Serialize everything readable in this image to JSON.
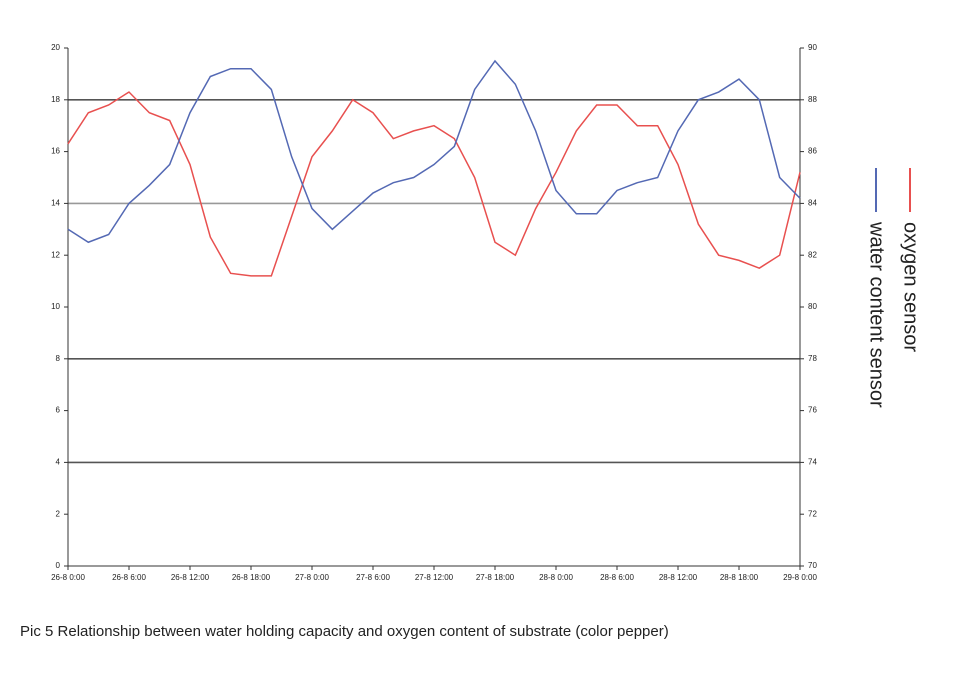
{
  "chart_data": {
    "type": "line",
    "caption": "Pic 5 Relationship between water holding capacity and oxygen content of substrate (color pepper)",
    "x": [
      0,
      2,
      4,
      6,
      8,
      10,
      12,
      14,
      16,
      18,
      20,
      22,
      24,
      26,
      28,
      30,
      32,
      34,
      36,
      38,
      40,
      42,
      44,
      46,
      48,
      50,
      52,
      54,
      56,
      58,
      60,
      62,
      64,
      66,
      68,
      70,
      72
    ],
    "xlim": [
      0,
      72
    ],
    "xticks": [
      {
        "value": 0,
        "label": "26-8 0:00"
      },
      {
        "value": 6,
        "label": "26-8 6:00"
      },
      {
        "value": 12,
        "label": "26-8 12:00"
      },
      {
        "value": 18,
        "label": "26-8 18:00"
      },
      {
        "value": 24,
        "label": "27-8 0:00"
      },
      {
        "value": 30,
        "label": "27-8 6:00"
      },
      {
        "value": 36,
        "label": "27-8 12:00"
      },
      {
        "value": 42,
        "label": "27-8 18:00"
      },
      {
        "value": 48,
        "label": "28-8 0:00"
      },
      {
        "value": 54,
        "label": "28-8 6:00"
      },
      {
        "value": 60,
        "label": "28-8 12:00"
      },
      {
        "value": 66,
        "label": "28-8 18:00"
      },
      {
        "value": 72,
        "label": "29-8 0:00"
      }
    ],
    "ylim": [
      0,
      20
    ],
    "yticks": [
      0,
      2,
      4,
      6,
      8,
      10,
      12,
      14,
      16,
      18,
      20
    ],
    "y2lim": [
      70,
      90
    ],
    "y2ticks": [
      70,
      72,
      74,
      76,
      78,
      80,
      82,
      84,
      86,
      88,
      90
    ],
    "grid_values": [
      4,
      8,
      14,
      18
    ],
    "series": [
      {
        "name": "oxygen sensor",
        "color": "#e8504f",
        "values": [
          16.3,
          17.5,
          17.8,
          18.3,
          17.5,
          17.2,
          15.5,
          12.7,
          11.3,
          11.2,
          11.2,
          13.5,
          15.8,
          16.8,
          18.0,
          17.5,
          16.5,
          16.8,
          17.0,
          16.5,
          15.0,
          12.5,
          12.0,
          13.8,
          15.2,
          16.8,
          17.8,
          17.8,
          17.0,
          17.0,
          15.5,
          13.2,
          12.0,
          11.8,
          11.5,
          12.0,
          15.2
        ]
      },
      {
        "name": "water content sensor",
        "color": "#5469b4",
        "values": [
          13.0,
          12.5,
          12.8,
          14.0,
          14.7,
          15.5,
          17.5,
          18.9,
          19.2,
          19.2,
          18.4,
          15.8,
          13.8,
          13.0,
          13.7,
          14.4,
          14.8,
          15.0,
          15.5,
          16.2,
          18.4,
          19.5,
          18.6,
          16.8,
          14.5,
          13.6,
          13.6,
          14.5,
          14.8,
          15.0,
          16.8,
          18.0,
          18.3,
          18.8,
          18.0,
          15.0,
          14.2
        ]
      }
    ]
  }
}
